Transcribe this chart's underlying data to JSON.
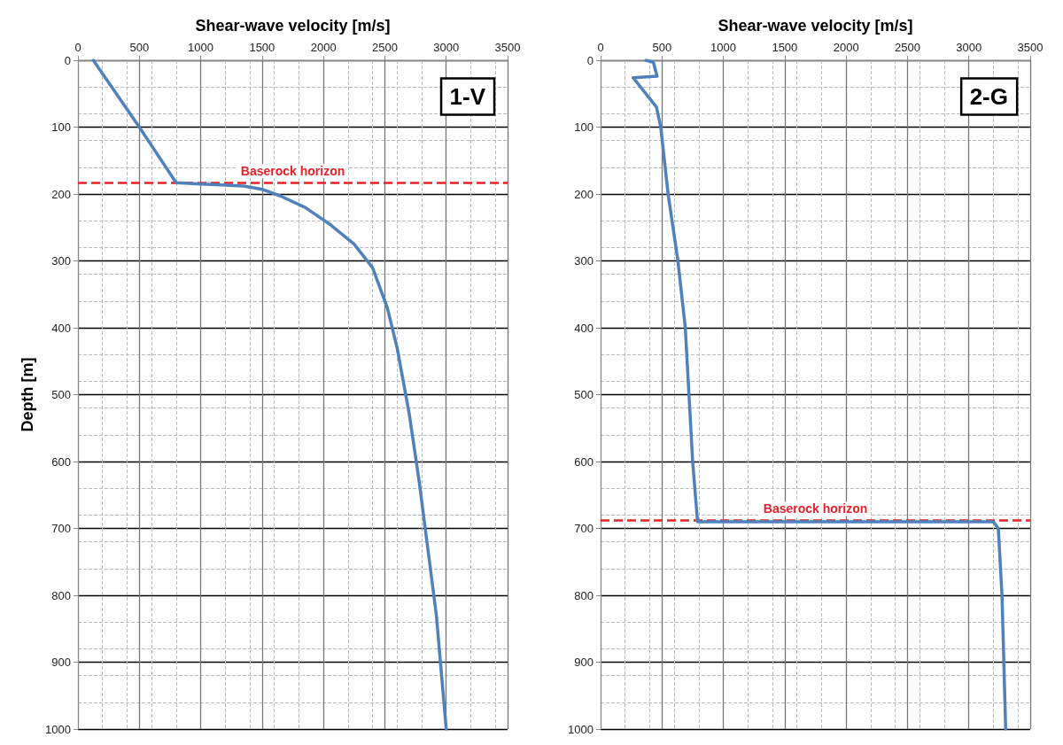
{
  "chart_data": [
    {
      "type": "line",
      "title": "1-V",
      "xlabel": "Shear-wave velocity [m/s]",
      "ylabel": "Depth [m]",
      "xlim": [
        0,
        3500
      ],
      "xticks": [
        0,
        500,
        1000,
        1500,
        2000,
        2500,
        3000,
        3500
      ],
      "ylim": [
        1000,
        0
      ],
      "yticks": [
        0,
        100,
        200,
        300,
        400,
        500,
        600,
        700,
        800,
        900,
        1000
      ],
      "grid": true,
      "marker": "none",
      "line_style": "solid",
      "series": [
        {
          "color": "#4f81bd",
          "x": [
            125,
            500,
            800,
            1000,
            1350,
            1500,
            1650,
            1850,
            2050,
            2250,
            2400,
            2520,
            2600,
            2700,
            2780,
            2850,
            2920,
            3000
          ],
          "values": [
            0,
            100,
            183,
            185,
            188,
            193,
            203,
            220,
            245,
            275,
            310,
            370,
            430,
            530,
            630,
            730,
            830,
            1000
          ]
        }
      ],
      "ref_lines": [
        {
          "axis": "y",
          "value": 183,
          "label": "Baserock horizon",
          "color": "#e8202a",
          "line_style": "dashed"
        }
      ]
    },
    {
      "type": "line",
      "title": "2-G",
      "xlabel": "Shear-wave velocity [m/s]",
      "xlim": [
        0,
        3500
      ],
      "xticks": [
        0,
        500,
        1000,
        1500,
        2000,
        2500,
        3000,
        3500
      ],
      "ylim": [
        1000,
        0
      ],
      "yticks": [
        0,
        100,
        200,
        300,
        400,
        500,
        600,
        700,
        800,
        900,
        1000
      ],
      "grid": true,
      "marker": "none",
      "line_style": "solid",
      "series": [
        {
          "color": "#4f81bd",
          "x": [
            370,
            430,
            460,
            265,
            455,
            490,
            550,
            630,
            690,
            720,
            750,
            790,
            3200,
            3240,
            3270,
            3300
          ],
          "values": [
            0,
            3,
            24,
            26,
            70,
            100,
            200,
            300,
            400,
            500,
            600,
            690,
            690,
            700,
            800,
            1000
          ]
        }
      ],
      "ref_lines": [
        {
          "axis": "y",
          "value": 688,
          "label": "Baserock horizon",
          "color": "#e8202a",
          "line_style": "dashed"
        }
      ]
    }
  ]
}
